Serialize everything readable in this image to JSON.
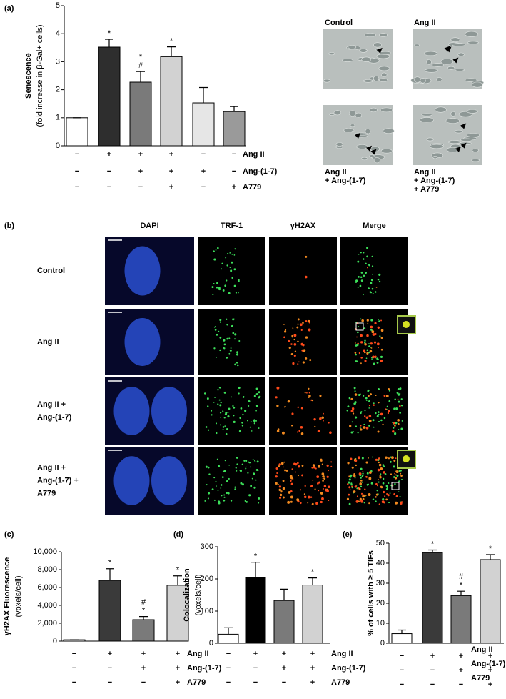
{
  "panel_labels": [
    "(a)",
    "(b)",
    "(c)",
    "(d)",
    "(e)"
  ],
  "micrographs_a": {
    "labels": [
      [
        "Control"
      ],
      [
        "Ang II"
      ],
      [
        "Ang II",
        "+ Ang-(1-7)"
      ],
      [
        "Ang II",
        "+ Ang-(1-7)",
        "+ A779"
      ]
    ]
  },
  "micrographs_b": {
    "columns": [
      {
        "label": "DAPI",
        "color": "#2a63d6"
      },
      {
        "label": "TRF-1",
        "color": "#2fb34a"
      },
      {
        "label": "γH2AX",
        "color": "#e0201b"
      },
      {
        "label": "Merge",
        "color": "#f2b515"
      }
    ],
    "rows": [
      [
        "Control"
      ],
      [
        "Ang II"
      ],
      [
        "Ang II +",
        "Ang-(1-7)"
      ],
      [
        "Ang II +",
        "Ang-(1-7) +",
        "A779"
      ]
    ]
  },
  "chart_data": [
    {
      "type": "bar",
      "y_label": [
        "Senescence",
        "(fold increase in β-Gal+ cells)"
      ],
      "values": [
        1.0,
        3.52,
        2.27,
        3.18,
        1.53,
        1.22
      ],
      "errors": [
        0,
        0.28,
        0.38,
        0.35,
        0.55,
        0.18
      ],
      "significance": [
        [],
        [
          "*"
        ],
        [
          "*",
          "#"
        ],
        [
          "*"
        ],
        [],
        []
      ],
      "colors": [
        "#ffffff",
        "#2e2e2e",
        "#7a7a7a",
        "#d2d2d2",
        "#e6e6e6",
        "#9a9a9a"
      ],
      "ylim": [
        0,
        5
      ],
      "yticks": [
        0,
        1,
        2,
        3,
        4,
        5
      ],
      "conditions": [
        {
          "name": "Ang II",
          "signs": [
            "−",
            "+",
            "+",
            "+",
            "−",
            "−"
          ]
        },
        {
          "name": "Ang-(1-7)",
          "signs": [
            "−",
            "−",
            "+",
            "+",
            "+",
            "−"
          ]
        },
        {
          "name": "A779",
          "signs": [
            "−",
            "−",
            "−",
            "+",
            "−",
            "+"
          ]
        }
      ]
    },
    {
      "type": "bar",
      "y_label": [
        "γH2AX Fluorescence",
        "(voxels/cell)"
      ],
      "values": [
        150,
        6800,
        2400,
        6250
      ],
      "errors": [
        0,
        1300,
        350,
        1050
      ],
      "significance": [
        [],
        [
          "*"
        ],
        [
          "#",
          "*"
        ],
        [
          "*"
        ]
      ],
      "colors": [
        "#ffffff",
        "#3a3a3a",
        "#7a7a7a",
        "#d2d2d2"
      ],
      "ylim": [
        0,
        10000
      ],
      "yticks": [
        0,
        {
          "value": 2000,
          "label": "2,000"
        },
        {
          "value": 4000,
          "label": "4,000"
        },
        {
          "value": 6000,
          "label": "6,000"
        },
        {
          "value": 8000,
          "label": "8,000"
        },
        {
          "value": 10000,
          "label": "10,000"
        }
      ],
      "conditions": [
        {
          "name": "Ang II",
          "signs": [
            "−",
            "+",
            "+",
            "+"
          ]
        },
        {
          "name": "Ang-(1-7)",
          "signs": [
            "−",
            "−",
            "+",
            "+"
          ]
        },
        {
          "name": "A779",
          "signs": [
            "−",
            "−",
            "−",
            "+"
          ]
        }
      ]
    },
    {
      "type": "bar",
      "y_label": [
        "Colocalization",
        "(voxels/cell)"
      ],
      "values": [
        28,
        205,
        133,
        181
      ],
      "errors": [
        20,
        47,
        35,
        22
      ],
      "significance": [
        [],
        [
          "*"
        ],
        [],
        [
          "*"
        ]
      ],
      "colors": [
        "#ffffff",
        "#000000",
        "#7a7a7a",
        "#d2d2d2"
      ],
      "ylim": [
        0,
        300
      ],
      "yticks": [
        0,
        100,
        200,
        300
      ],
      "conditions": [
        {
          "name": "Ang II",
          "signs": [
            "−",
            "+",
            "+",
            "+"
          ]
        },
        {
          "name": "Ang-(1-7)",
          "signs": [
            "−",
            "−",
            "+",
            "+"
          ]
        },
        {
          "name": "A779",
          "signs": [
            "−",
            "−",
            "−",
            "+"
          ]
        }
      ]
    },
    {
      "type": "bar",
      "y_label": [
        "% of cells with ≥ 5 TIFs"
      ],
      "values": [
        4.8,
        45.3,
        23.8,
        41.8
      ],
      "errors": [
        1.8,
        1.3,
        2.2,
        2.5
      ],
      "significance": [
        [],
        [
          "*"
        ],
        [
          "#",
          "*"
        ],
        [
          "*"
        ]
      ],
      "colors": [
        "#ffffff",
        "#3a3a3a",
        "#7a7a7a",
        "#d2d2d2"
      ],
      "ylim": [
        0,
        50
      ],
      "yticks": [
        0,
        10,
        20,
        30,
        40,
        50
      ],
      "conditions": [
        {
          "name": "Ang II",
          "signs": [
            "−",
            "+",
            "+",
            "+"
          ]
        },
        {
          "name": "Ang-(1-7)",
          "signs": [
            "−",
            "−",
            "+",
            "+"
          ]
        },
        {
          "name": "A779",
          "signs": [
            "−",
            "−",
            "−",
            "+"
          ]
        }
      ]
    }
  ]
}
